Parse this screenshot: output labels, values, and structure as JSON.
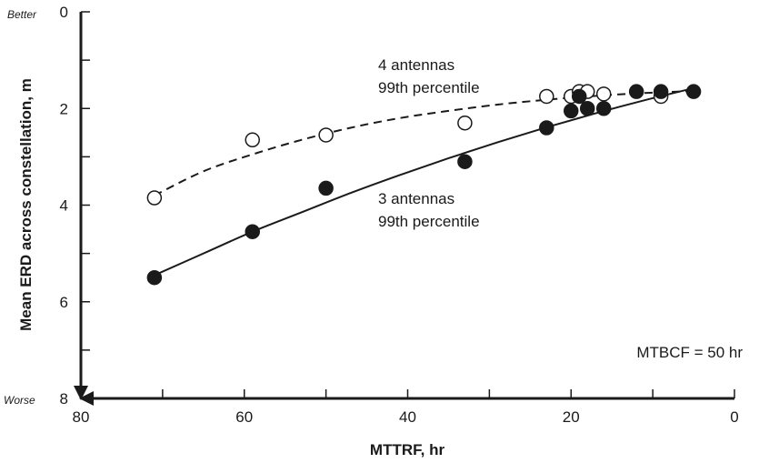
{
  "chart_data": {
    "type": "scatter",
    "title": "",
    "xlabel": "MTTRF, hr",
    "ylabel": "Mean ERD across constellation, m",
    "xlim": [
      80,
      0
    ],
    "ylim": [
      8,
      0
    ],
    "x_reversed": true,
    "y_reversed": true,
    "x_ticks": [
      80,
      60,
      40,
      20,
      0
    ],
    "y_ticks": [
      0,
      2,
      4,
      6,
      8
    ],
    "y_axis_top_label": "Better",
    "y_axis_bottom_label": "Worse",
    "annotation": "MTBCF = 50 hr",
    "grid": false,
    "series": [
      {
        "name": "4 antennas 99th percentile",
        "label_lines": [
          "4 antennas",
          "99th percentile"
        ],
        "marker": "open-circle",
        "line_style": "dashed",
        "color": "#1a1a1a",
        "x": [
          71,
          59,
          50,
          33,
          23,
          20,
          19,
          18,
          16,
          9
        ],
        "y": [
          3.85,
          2.65,
          2.55,
          2.3,
          1.75,
          1.75,
          1.65,
          1.65,
          1.7,
          1.75
        ],
        "fit_x": [
          71,
          65,
          59,
          53,
          47,
          41,
          35,
          29,
          23,
          17,
          11,
          5
        ],
        "fit_y": [
          3.8,
          3.3,
          2.95,
          2.65,
          2.4,
          2.2,
          2.05,
          1.92,
          1.82,
          1.74,
          1.68,
          1.64
        ]
      },
      {
        "name": "3 antennas 99th percentile",
        "label_lines": [
          "3 antennas",
          "99th percentile"
        ],
        "marker": "filled-circle",
        "line_style": "solid",
        "color": "#1a1a1a",
        "x": [
          71,
          59,
          50,
          33,
          23,
          20,
          19,
          18,
          16,
          12,
          9,
          5
        ],
        "y": [
          5.5,
          4.55,
          3.65,
          3.1,
          2.4,
          2.05,
          1.75,
          2.0,
          2.0,
          1.65,
          1.65,
          1.65
        ],
        "fit_x": [
          71,
          65,
          59,
          53,
          47,
          41,
          35,
          29,
          23,
          17,
          11,
          5
        ],
        "fit_y": [
          5.45,
          5.0,
          4.55,
          4.15,
          3.75,
          3.38,
          3.03,
          2.7,
          2.39,
          2.1,
          1.83,
          1.58
        ]
      }
    ]
  }
}
